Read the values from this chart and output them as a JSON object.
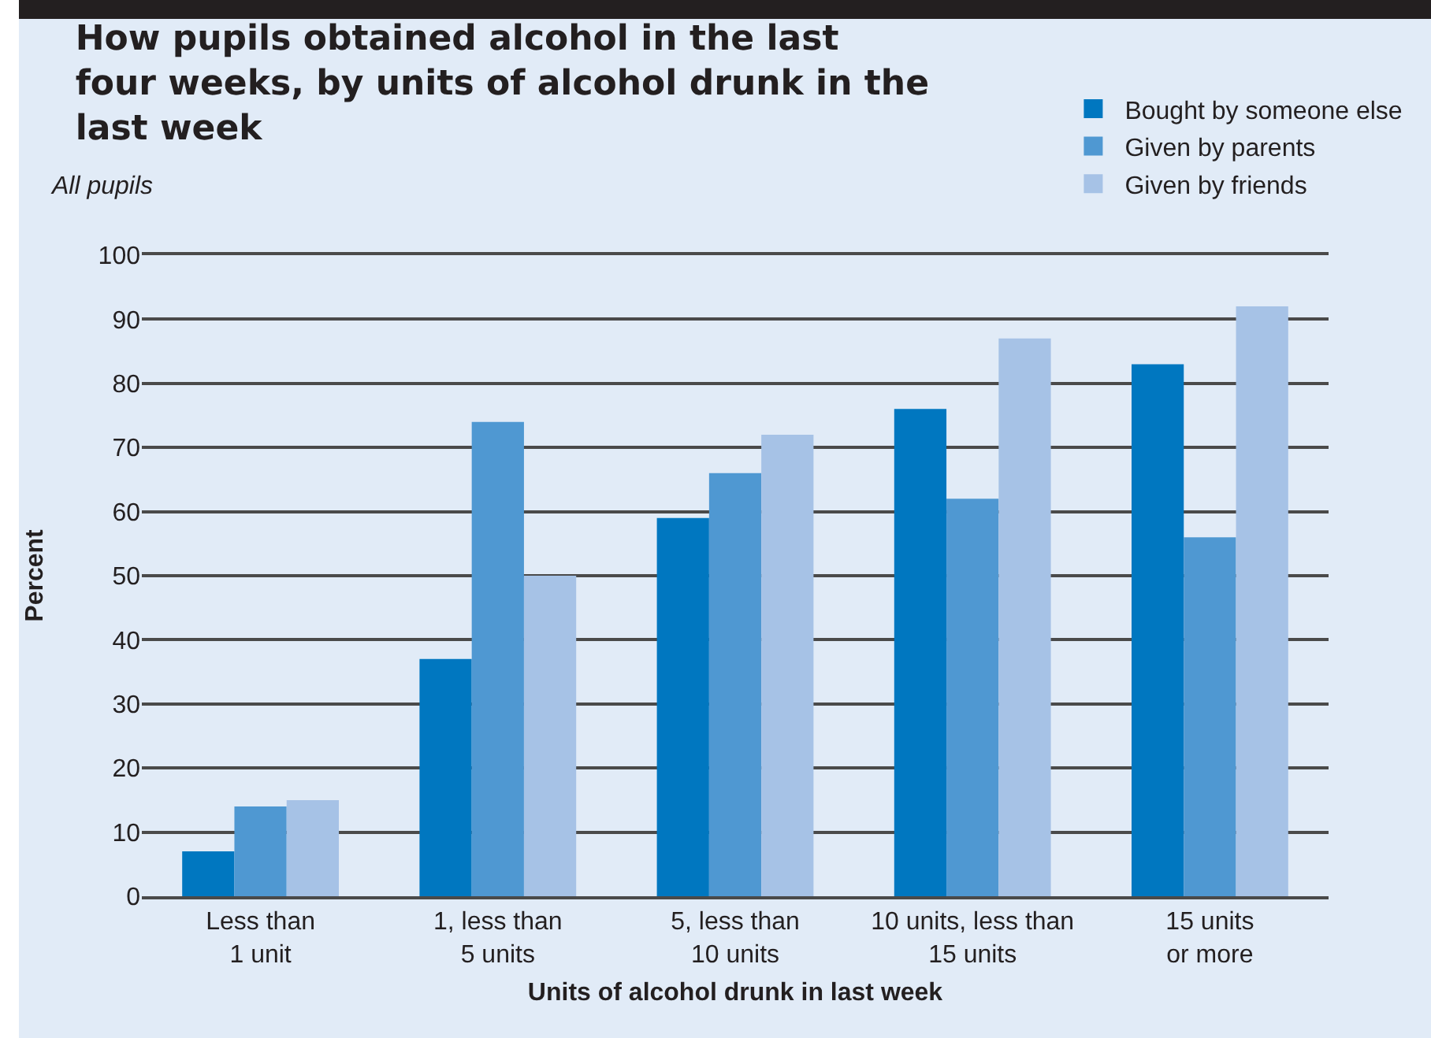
{
  "chart_data": {
    "type": "bar",
    "title": "How pupils obtained alcohol in the last\nfour weeks, by units of alcohol drunk in the\nlast week",
    "subtitle": "All pupils",
    "xlabel": "Units of alcohol drunk in last week",
    "ylabel": "Percent",
    "categories": [
      "Less than\n1 unit",
      "1, less than\n5 units",
      "5, less than\n10 units",
      "10 units, less than\n15 units",
      "15 units\nor more"
    ],
    "series": [
      {
        "name": "Bought by someone else",
        "color": "#0077c0",
        "values": [
          7,
          37,
          59,
          76,
          83
        ]
      },
      {
        "name": "Given by parents",
        "color": "#4f98d2",
        "values": [
          14,
          74,
          66,
          62,
          56
        ]
      },
      {
        "name": "Given by friends",
        "color": "#a6c2e6",
        "values": [
          15,
          50,
          72,
          87,
          92
        ]
      }
    ],
    "ylim": [
      0,
      100
    ],
    "yticks": [
      0,
      10,
      20,
      30,
      40,
      50,
      60,
      70,
      80,
      90,
      100
    ],
    "grid": "y",
    "legend": "top right"
  }
}
